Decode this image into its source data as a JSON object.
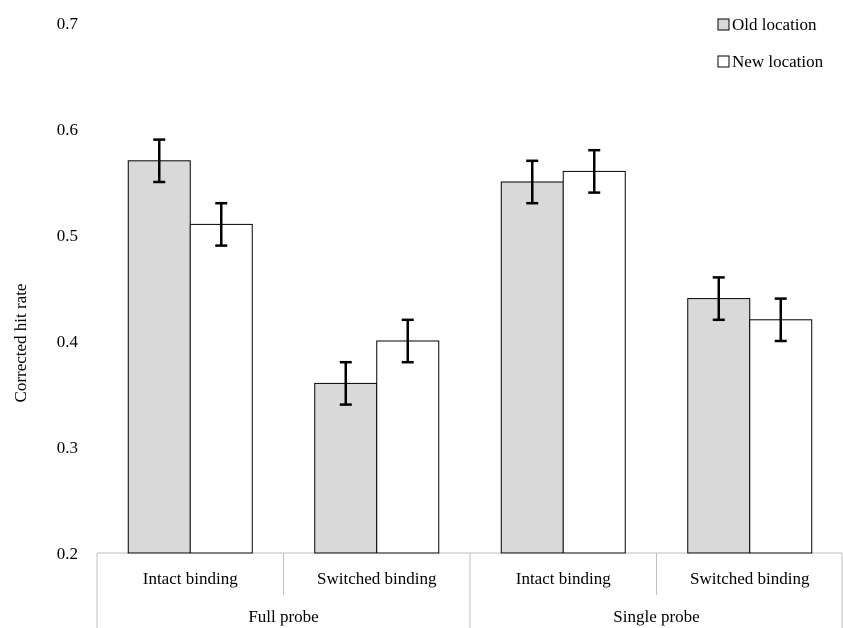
{
  "chart_data": {
    "type": "bar",
    "title": "",
    "xlabel": "",
    "ylabel": "Corrected hit rate",
    "ylim": [
      0.2,
      0.7
    ],
    "yticks": [
      "0.2",
      "0.3",
      "0.4",
      "0.5",
      "0.6",
      "0.7"
    ],
    "grid": false,
    "legend_position": "top-right",
    "groups": [
      {
        "label": "Full probe",
        "categories": [
          "Intact binding",
          "Switched binding"
        ]
      },
      {
        "label": "Single probe",
        "categories": [
          "Intact binding",
          "Switched binding"
        ]
      }
    ],
    "categories": [
      "Intact binding",
      "Switched binding",
      "Intact binding",
      "Switched binding"
    ],
    "series": [
      {
        "name": "Old location",
        "color": "#d9d9d9",
        "values": [
          0.57,
          0.36,
          0.55,
          0.44
        ],
        "error": [
          0.02,
          0.02,
          0.02,
          0.02
        ]
      },
      {
        "name": "New location",
        "color": "#ffffff",
        "values": [
          0.51,
          0.4,
          0.56,
          0.42
        ],
        "error": [
          0.02,
          0.02,
          0.02,
          0.02
        ]
      }
    ]
  }
}
